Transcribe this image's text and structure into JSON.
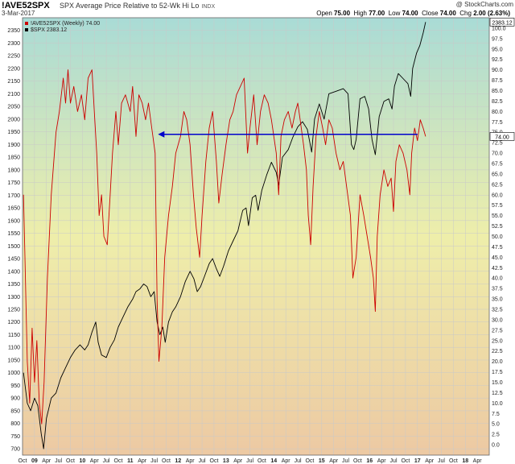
{
  "header": {
    "symbol": "!AVE52SPX",
    "description": "SPX Average Price Relative to 52-Wk Hi Lo",
    "exchange": "INDX",
    "date": "3-Mar-2017",
    "brand": "@ StockCharts.com",
    "open_label": "Open",
    "open": "75.00",
    "high_label": "High",
    "high": "77.00",
    "low_label": "Low",
    "low": "74.00",
    "close_label": "Close",
    "close": "74.00",
    "chg_label": "Chg",
    "chg": "2.00 (2.63%)"
  },
  "chart_data": {
    "type": "line",
    "title": "",
    "legend": [
      {
        "label": "!AVE52SPX (Weekly) 74.00",
        "color": "#cc0000"
      },
      {
        "label": "$SPX 2383.12",
        "color": "#000000"
      }
    ],
    "legend_position": "top-left",
    "x_tick_labels": [
      "Oct",
      "09",
      "Apr",
      "Jul",
      "Oct",
      "10",
      "Apr",
      "Jul",
      "Oct",
      "11",
      "Apr",
      "Jul",
      "Oct",
      "12",
      "Apr",
      "Jul",
      "Oct",
      "13",
      "Apr",
      "Jul",
      "Oct",
      "14",
      "Apr",
      "Jul",
      "Oct",
      "15",
      "Apr",
      "Jul",
      "Oct",
      "16",
      "Apr",
      "Jul",
      "Oct",
      "17",
      "Apr",
      "Jul",
      "Oct",
      "18",
      "Apr"
    ],
    "x_range": [
      2008.75,
      2018.5
    ],
    "y_left": {
      "series": "$SPX",
      "range": [
        675,
        2400
      ],
      "ticks": [
        700,
        750,
        800,
        850,
        900,
        950,
        1000,
        1050,
        1100,
        1150,
        1200,
        1250,
        1300,
        1350,
        1400,
        1450,
        1500,
        1550,
        1600,
        1650,
        1700,
        1750,
        1800,
        1850,
        1900,
        1950,
        2000,
        2050,
        2100,
        2150,
        2200,
        2250,
        2300,
        2350
      ]
    },
    "y_right": {
      "series": "!AVE52SPX",
      "range": [
        -2.5,
        102.5
      ],
      "ticks": [
        0,
        2.5,
        5,
        7.5,
        10,
        12.5,
        15,
        17.5,
        20,
        22.5,
        25,
        27.5,
        30,
        32.5,
        35,
        37.5,
        40,
        42.5,
        45,
        47.5,
        50,
        52.5,
        55,
        57.5,
        60,
        62.5,
        65,
        67.5,
        70,
        72.5,
        75,
        77.5,
        80,
        82.5,
        85,
        87.5,
        90,
        92.5,
        95,
        97.5,
        100
      ]
    },
    "value_tags": [
      {
        "series": "$SPX",
        "label": "2383.12",
        "value": 2383.12
      },
      {
        "series": "!AVE52SPX",
        "label": "74.00",
        "value": 74.0
      }
    ],
    "grid": true,
    "annotations": [
      {
        "type": "arrow",
        "color": "#0000cc",
        "y_value_right": 74.5,
        "x_from": 2017.0,
        "x_to": 2011.58
      }
    ],
    "series": [
      {
        "name": "$SPX",
        "axis": "left",
        "color": "#000000",
        "points": [
          [
            2008.77,
            1000
          ],
          [
            2008.85,
            880
          ],
          [
            2008.92,
            850
          ],
          [
            2009.0,
            900
          ],
          [
            2009.07,
            870
          ],
          [
            2009.14,
            760
          ],
          [
            2009.19,
            700
          ],
          [
            2009.25,
            820
          ],
          [
            2009.35,
            900
          ],
          [
            2009.45,
            920
          ],
          [
            2009.55,
            980
          ],
          [
            2009.65,
            1020
          ],
          [
            2009.75,
            1060
          ],
          [
            2009.85,
            1090
          ],
          [
            2009.95,
            1110
          ],
          [
            2010.05,
            1090
          ],
          [
            2010.12,
            1110
          ],
          [
            2010.2,
            1160
          ],
          [
            2010.28,
            1200
          ],
          [
            2010.33,
            1120
          ],
          [
            2010.4,
            1070
          ],
          [
            2010.5,
            1060
          ],
          [
            2010.58,
            1100
          ],
          [
            2010.67,
            1130
          ],
          [
            2010.75,
            1180
          ],
          [
            2010.85,
            1220
          ],
          [
            2010.95,
            1260
          ],
          [
            2011.05,
            1290
          ],
          [
            2011.12,
            1320
          ],
          [
            2011.2,
            1330
          ],
          [
            2011.28,
            1350
          ],
          [
            2011.35,
            1340
          ],
          [
            2011.43,
            1300
          ],
          [
            2011.5,
            1320
          ],
          [
            2011.56,
            1200
          ],
          [
            2011.62,
            1150
          ],
          [
            2011.68,
            1180
          ],
          [
            2011.73,
            1120
          ],
          [
            2011.8,
            1200
          ],
          [
            2011.88,
            1240
          ],
          [
            2011.95,
            1260
          ],
          [
            2012.05,
            1300
          ],
          [
            2012.15,
            1360
          ],
          [
            2012.25,
            1400
          ],
          [
            2012.33,
            1370
          ],
          [
            2012.4,
            1320
          ],
          [
            2012.47,
            1340
          ],
          [
            2012.55,
            1380
          ],
          [
            2012.65,
            1430
          ],
          [
            2012.72,
            1450
          ],
          [
            2012.8,
            1410
          ],
          [
            2012.87,
            1380
          ],
          [
            2012.95,
            1420
          ],
          [
            2013.05,
            1480
          ],
          [
            2013.15,
            1520
          ],
          [
            2013.25,
            1560
          ],
          [
            2013.35,
            1640
          ],
          [
            2013.42,
            1650
          ],
          [
            2013.47,
            1580
          ],
          [
            2013.55,
            1690
          ],
          [
            2013.62,
            1700
          ],
          [
            2013.67,
            1640
          ],
          [
            2013.75,
            1720
          ],
          [
            2013.85,
            1780
          ],
          [
            2013.95,
            1830
          ],
          [
            2014.05,
            1790
          ],
          [
            2014.1,
            1740
          ],
          [
            2014.18,
            1850
          ],
          [
            2014.3,
            1880
          ],
          [
            2014.4,
            1930
          ],
          [
            2014.5,
            1970
          ],
          [
            2014.6,
            1990
          ],
          [
            2014.7,
            1960
          ],
          [
            2014.79,
            1870
          ],
          [
            2014.85,
            2000
          ],
          [
            2014.95,
            2060
          ],
          [
            2015.05,
            2000
          ],
          [
            2015.15,
            2100
          ],
          [
            2015.3,
            2110
          ],
          [
            2015.45,
            2120
          ],
          [
            2015.55,
            2100
          ],
          [
            2015.62,
            1900
          ],
          [
            2015.67,
            1880
          ],
          [
            2015.72,
            1920
          ],
          [
            2015.8,
            2080
          ],
          [
            2015.9,
            2090
          ],
          [
            2015.98,
            2040
          ],
          [
            2016.05,
            1920
          ],
          [
            2016.12,
            1860
          ],
          [
            2016.2,
            2010
          ],
          [
            2016.3,
            2070
          ],
          [
            2016.4,
            2080
          ],
          [
            2016.47,
            2040
          ],
          [
            2016.52,
            2130
          ],
          [
            2016.6,
            2180
          ],
          [
            2016.7,
            2160
          ],
          [
            2016.8,
            2140
          ],
          [
            2016.86,
            2090
          ],
          [
            2016.9,
            2200
          ],
          [
            2016.98,
            2260
          ],
          [
            2017.05,
            2290
          ],
          [
            2017.12,
            2340
          ],
          [
            2017.17,
            2383.12
          ]
        ]
      },
      {
        "name": "!AVE52SPX",
        "axis": "right",
        "color": "#cc0000",
        "points": [
          [
            2008.77,
            60
          ],
          [
            2008.8,
            45
          ],
          [
            2008.85,
            20
          ],
          [
            2008.9,
            10
          ],
          [
            2008.95,
            28
          ],
          [
            2009.0,
            15
          ],
          [
            2009.05,
            25
          ],
          [
            2009.1,
            10
          ],
          [
            2009.15,
            5
          ],
          [
            2009.2,
            15
          ],
          [
            2009.27,
            40
          ],
          [
            2009.35,
            60
          ],
          [
            2009.45,
            75
          ],
          [
            2009.52,
            80
          ],
          [
            2009.6,
            88
          ],
          [
            2009.65,
            82
          ],
          [
            2009.7,
            90
          ],
          [
            2009.75,
            82
          ],
          [
            2009.82,
            86
          ],
          [
            2009.9,
            80
          ],
          [
            2009.98,
            84
          ],
          [
            2010.05,
            78
          ],
          [
            2010.12,
            88
          ],
          [
            2010.2,
            90
          ],
          [
            2010.25,
            80
          ],
          [
            2010.3,
            70
          ],
          [
            2010.35,
            55
          ],
          [
            2010.4,
            60
          ],
          [
            2010.45,
            50
          ],
          [
            2010.52,
            48
          ],
          [
            2010.58,
            60
          ],
          [
            2010.63,
            70
          ],
          [
            2010.7,
            80
          ],
          [
            2010.75,
            72
          ],
          [
            2010.82,
            82
          ],
          [
            2010.9,
            84
          ],
          [
            2011.0,
            80
          ],
          [
            2011.05,
            86
          ],
          [
            2011.12,
            74
          ],
          [
            2011.18,
            84
          ],
          [
            2011.25,
            82
          ],
          [
            2011.32,
            78
          ],
          [
            2011.38,
            82
          ],
          [
            2011.45,
            76
          ],
          [
            2011.52,
            70
          ],
          [
            2011.56,
            35
          ],
          [
            2011.6,
            20
          ],
          [
            2011.66,
            28
          ],
          [
            2011.72,
            45
          ],
          [
            2011.8,
            55
          ],
          [
            2011.88,
            62
          ],
          [
            2011.95,
            70
          ],
          [
            2012.05,
            74
          ],
          [
            2012.12,
            80
          ],
          [
            2012.18,
            78
          ],
          [
            2012.25,
            72
          ],
          [
            2012.32,
            60
          ],
          [
            2012.38,
            52
          ],
          [
            2012.45,
            45
          ],
          [
            2012.5,
            55
          ],
          [
            2012.58,
            68
          ],
          [
            2012.65,
            76
          ],
          [
            2012.72,
            80
          ],
          [
            2012.8,
            68
          ],
          [
            2012.85,
            58
          ],
          [
            2012.92,
            65
          ],
          [
            2013.0,
            72
          ],
          [
            2013.08,
            78
          ],
          [
            2013.15,
            80
          ],
          [
            2013.22,
            84
          ],
          [
            2013.3,
            86
          ],
          [
            2013.38,
            88
          ],
          [
            2013.45,
            70
          ],
          [
            2013.5,
            76
          ],
          [
            2013.58,
            84
          ],
          [
            2013.65,
            72
          ],
          [
            2013.72,
            80
          ],
          [
            2013.8,
            84
          ],
          [
            2013.88,
            82
          ],
          [
            2013.95,
            78
          ],
          [
            2014.0,
            74
          ],
          [
            2014.05,
            70
          ],
          [
            2014.1,
            60
          ],
          [
            2014.15,
            74
          ],
          [
            2014.22,
            78
          ],
          [
            2014.3,
            80
          ],
          [
            2014.38,
            76
          ],
          [
            2014.45,
            80
          ],
          [
            2014.5,
            82
          ],
          [
            2014.55,
            78
          ],
          [
            2014.62,
            72
          ],
          [
            2014.68,
            66
          ],
          [
            2014.72,
            55
          ],
          [
            2014.77,
            48
          ],
          [
            2014.82,
            62
          ],
          [
            2014.88,
            74
          ],
          [
            2014.95,
            80
          ],
          [
            2015.02,
            76
          ],
          [
            2015.08,
            72
          ],
          [
            2015.15,
            78
          ],
          [
            2015.22,
            76
          ],
          [
            2015.3,
            70
          ],
          [
            2015.38,
            66
          ],
          [
            2015.45,
            68
          ],
          [
            2015.52,
            62
          ],
          [
            2015.6,
            55
          ],
          [
            2015.65,
            40
          ],
          [
            2015.72,
            45
          ],
          [
            2015.8,
            60
          ],
          [
            2015.88,
            55
          ],
          [
            2015.95,
            50
          ],
          [
            2016.02,
            45
          ],
          [
            2016.08,
            40
          ],
          [
            2016.12,
            32
          ],
          [
            2016.16,
            50
          ],
          [
            2016.22,
            60
          ],
          [
            2016.3,
            66
          ],
          [
            2016.38,
            62
          ],
          [
            2016.45,
            64
          ],
          [
            2016.5,
            56
          ],
          [
            2016.55,
            68
          ],
          [
            2016.62,
            72
          ],
          [
            2016.7,
            70
          ],
          [
            2016.78,
            66
          ],
          [
            2016.84,
            60
          ],
          [
            2016.88,
            70
          ],
          [
            2016.94,
            76
          ],
          [
            2017.0,
            73
          ],
          [
            2017.06,
            78
          ],
          [
            2017.12,
            76
          ],
          [
            2017.17,
            74
          ]
        ]
      }
    ]
  }
}
